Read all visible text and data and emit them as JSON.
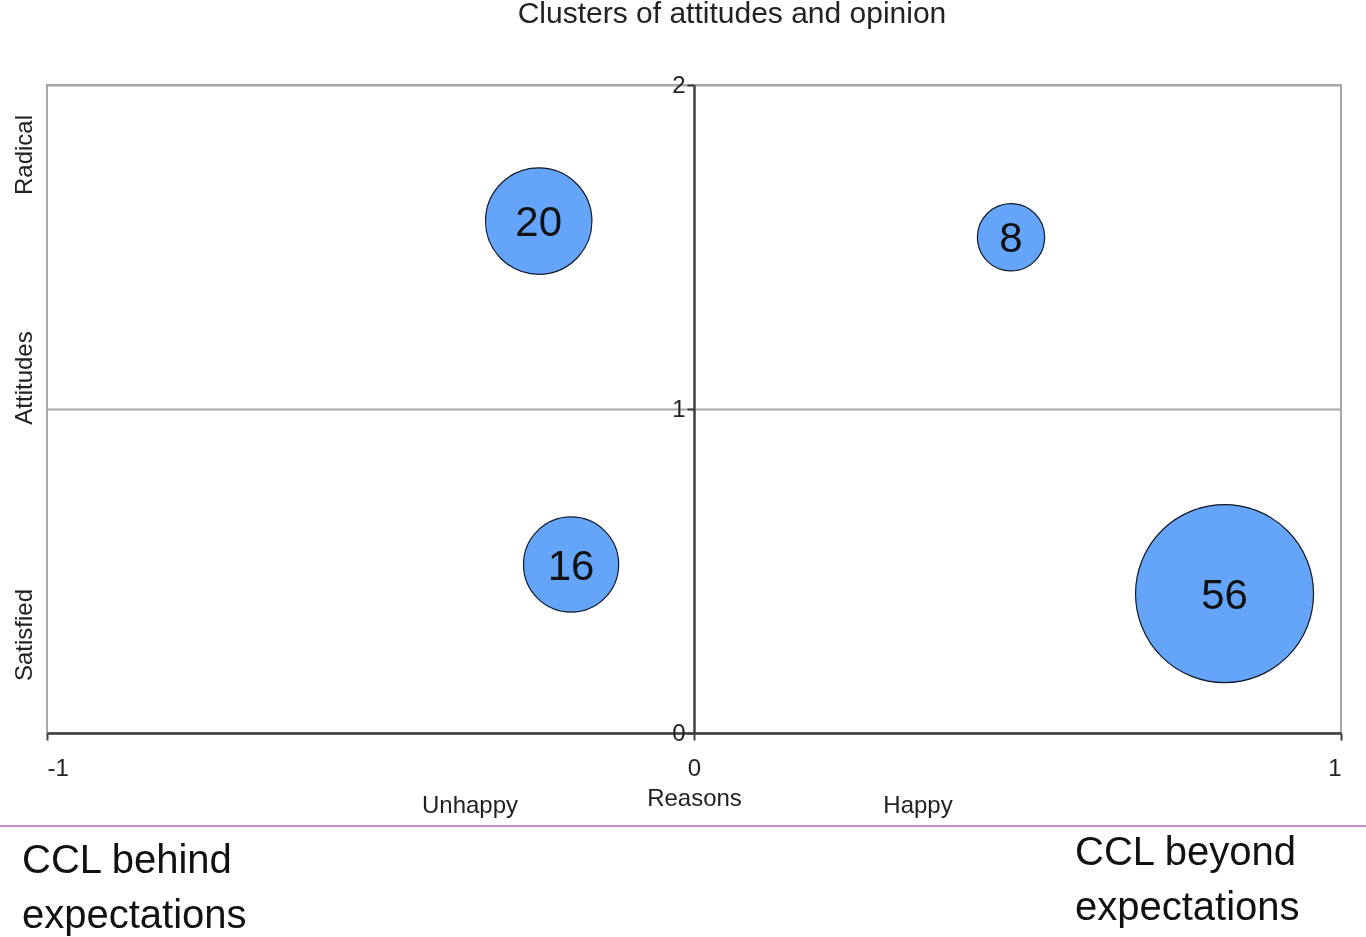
{
  "chart_data": {
    "type": "bubble",
    "title": "Clusters of attitudes and opinion",
    "xlabel": "Reasons",
    "ylabel": "Attitudes",
    "x": [
      -0.24,
      0.49,
      -0.19,
      0.82
    ],
    "values": [
      1.58,
      1.53,
      0.52,
      0.43
    ],
    "sizes": [
      20,
      8,
      16,
      56
    ],
    "value_labels": [
      "20",
      "8",
      "16",
      "56"
    ],
    "color": "#64a5f9",
    "xlim": [
      -1,
      1
    ],
    "xticks": [
      -1,
      0,
      1
    ],
    "ylim": [
      0,
      2
    ],
    "yticks": [
      0,
      1,
      2
    ],
    "grid": "y",
    "annotations": [
      "Unhappy",
      "Happy",
      "Radical",
      "Satisfied",
      "CCL behind expectations",
      "CCL beyond expectations"
    ]
  }
}
